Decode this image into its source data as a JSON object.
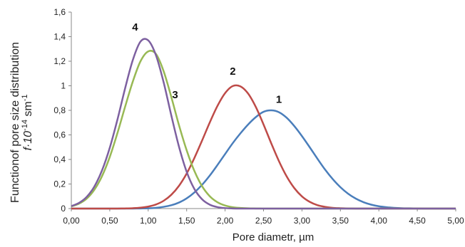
{
  "chart_data": {
    "type": "line",
    "xlabel": "Pore diametr, µm",
    "ylabel": "Functionof pore size distribution",
    "ylabel_line2_prefix": "f·10",
    "ylabel_line2_exp": "-14",
    "ylabel_line2_unit": " sm",
    "ylabel_line2_unit_exp": "-1",
    "xlim": [
      0,
      5
    ],
    "ylim": [
      0,
      1.6
    ],
    "x_ticks": [
      "0,00",
      "0,50",
      "1,00",
      "1,50",
      "2,00",
      "2,50",
      "3,00",
      "3,50",
      "4,00",
      "4,50",
      "5,00"
    ],
    "x_tick_values": [
      0,
      0.5,
      1,
      1.5,
      2,
      2.5,
      3,
      3.5,
      4,
      4.5,
      5
    ],
    "y_ticks": [
      "0",
      "0,2",
      "0,4",
      "0,6",
      "0,8",
      "1",
      "1,2",
      "1,4",
      "1,6"
    ],
    "y_tick_values": [
      0,
      0.2,
      0.4,
      0.6,
      0.8,
      1.0,
      1.2,
      1.4,
      1.6
    ],
    "grid": false,
    "x": [
      0.0,
      0.1,
      0.2,
      0.3,
      0.4,
      0.5,
      0.6,
      0.7,
      0.8,
      0.9,
      1.0,
      1.1,
      1.2,
      1.3,
      1.4,
      1.5,
      1.6,
      1.7,
      1.8,
      1.9,
      2.0,
      2.1,
      2.2,
      2.3,
      2.4,
      2.5,
      2.6,
      2.7,
      2.8,
      2.9,
      3.0,
      3.1,
      3.2,
      3.3,
      3.4,
      3.5,
      3.6,
      3.7,
      3.8,
      3.9,
      4.0,
      4.1,
      4.2,
      4.3,
      4.4,
      4.5,
      4.6,
      4.7,
      4.8,
      4.9,
      5.0
    ],
    "series": [
      {
        "label": "1",
        "color": "#4a7ebb",
        "values": [
          0,
          0,
          0,
          0,
          0,
          0,
          0,
          0,
          0,
          0.001,
          0.002,
          0.006,
          0.014,
          0.027,
          0.049,
          0.083,
          0.131,
          0.193,
          0.268,
          0.354,
          0.444,
          0.533,
          0.613,
          0.685,
          0.745,
          0.788,
          0.8,
          0.785,
          0.74,
          0.672,
          0.59,
          0.5,
          0.407,
          0.318,
          0.24,
          0.174,
          0.121,
          0.081,
          0.052,
          0.032,
          0.019,
          0.011,
          0.006,
          0.003,
          0.002,
          0.001,
          0,
          0,
          0,
          0,
          0
        ]
      },
      {
        "label": "2",
        "color": "#be4b48",
        "values": [
          0,
          0,
          0,
          0,
          0,
          0,
          0,
          0.001,
          0.003,
          0.007,
          0.016,
          0.033,
          0.063,
          0.112,
          0.185,
          0.285,
          0.411,
          0.553,
          0.7,
          0.835,
          0.94,
          0.998,
          0.995,
          0.936,
          0.827,
          0.685,
          0.532,
          0.387,
          0.263,
          0.167,
          0.099,
          0.055,
          0.028,
          0.014,
          0.006,
          0.003,
          0.001,
          0,
          0,
          0,
          0,
          0,
          0,
          0,
          0,
          0,
          0,
          0,
          0,
          0,
          0
        ]
      },
      {
        "label": "3",
        "color": "#98b954",
        "values": [
          0.018,
          0.04,
          0.081,
          0.153,
          0.265,
          0.42,
          0.615,
          0.83,
          1.035,
          1.2,
          1.28,
          1.26,
          1.12,
          0.91,
          0.68,
          0.475,
          0.307,
          0.183,
          0.101,
          0.052,
          0.025,
          0.011,
          0.005,
          0.002,
          0.001,
          0,
          0,
          0,
          0,
          0,
          0,
          0,
          0,
          0,
          0,
          0,
          0,
          0,
          0,
          0,
          0,
          0,
          0,
          0,
          0,
          0,
          0,
          0,
          0,
          0,
          0
        ]
      },
      {
        "label": "4",
        "color": "#7d60a0",
        "values": [
          0.02,
          0.046,
          0.095,
          0.18,
          0.312,
          0.495,
          0.725,
          0.98,
          1.21,
          1.36,
          1.37,
          1.25,
          1.03,
          0.76,
          0.505,
          0.3,
          0.16,
          0.076,
          0.032,
          0.012,
          0.004,
          0.001,
          0,
          0,
          0,
          0,
          0,
          0,
          0,
          0,
          0,
          0,
          0,
          0,
          0,
          0,
          0,
          0,
          0,
          0,
          0,
          0,
          0,
          0,
          0,
          0,
          0,
          0,
          0,
          0,
          0
        ]
      }
    ],
    "curve_labels": [
      {
        "text": "1",
        "x": 2.7,
        "y": 0.86
      },
      {
        "text": "2",
        "x": 2.1,
        "y": 1.09
      },
      {
        "text": "3",
        "x": 1.35,
        "y": 0.9
      },
      {
        "text": "4",
        "x": 0.83,
        "y": 1.45
      }
    ]
  }
}
